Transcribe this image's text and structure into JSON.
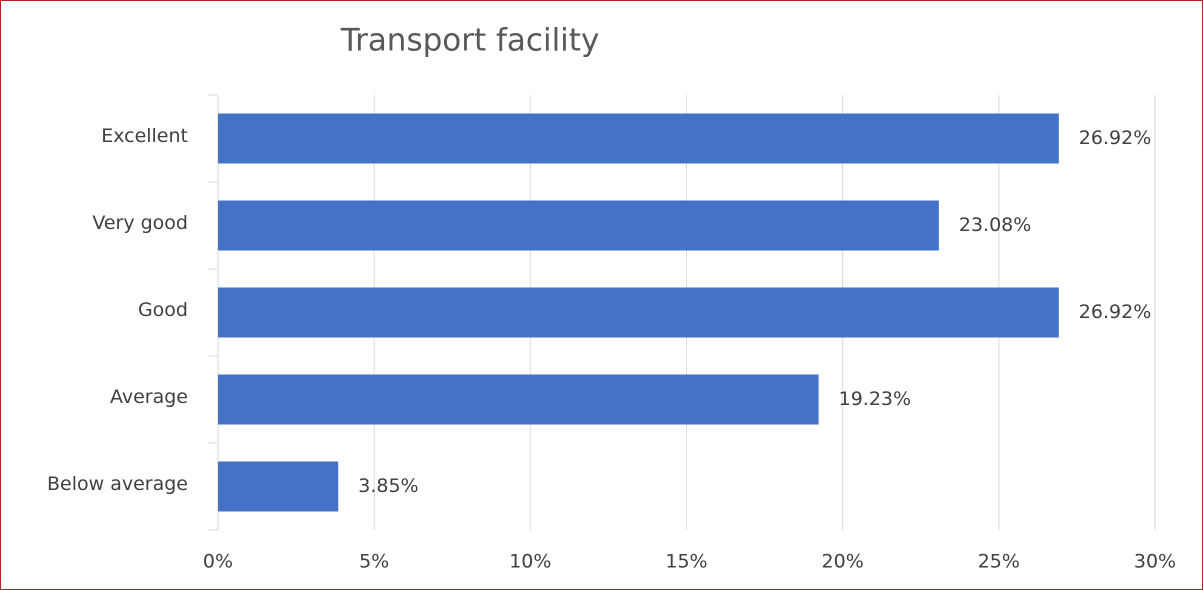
{
  "chart_data": {
    "type": "bar",
    "orientation": "horizontal",
    "title": "Transport facility",
    "categories": [
      "Excellent",
      "Very good",
      "Good",
      "Average",
      "Below average"
    ],
    "values": [
      26.92,
      23.08,
      26.92,
      19.23,
      3.85
    ],
    "value_labels": [
      "26.92%",
      "23.08%",
      "26.92%",
      "19.23%",
      "3.85%"
    ],
    "color": "#4472c4",
    "xlim": [
      0,
      30
    ],
    "xticks": [
      {
        "value": 0,
        "label": "0%"
      },
      {
        "value": 5,
        "label": "5%"
      },
      {
        "value": 10,
        "label": "10%"
      },
      {
        "value": 15,
        "label": "15%"
      },
      {
        "value": 20,
        "label": "20%"
      },
      {
        "value": 25,
        "label": "25%"
      },
      {
        "value": 30,
        "label": "30%"
      }
    ],
    "grid": true
  }
}
